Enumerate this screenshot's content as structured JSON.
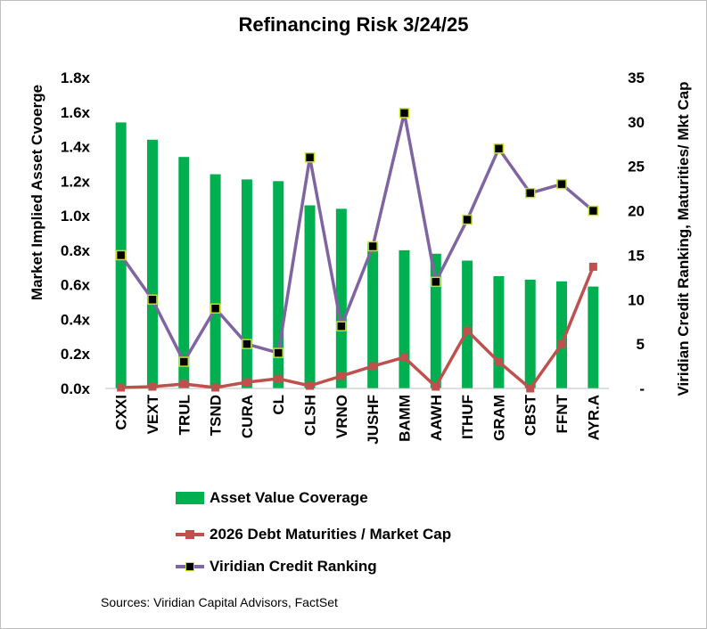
{
  "chart_data": {
    "type": "bar",
    "title": "Refinancing Risk 3/24/25",
    "ylabel": "Market Implied Asset Cvoerge",
    "y2label": "Viridian Credit Ranking,  Maturities/ Mkt Cap",
    "categories": [
      "CXXI",
      "VEXT",
      "TRUL",
      "TSND",
      "CURA",
      "CL",
      "CLSH",
      "VRNO",
      "JUSHF",
      "BAMM",
      "AAWH",
      "ITHUF",
      "GRAM",
      "CBST",
      "FFNT",
      "AYR.A"
    ],
    "ylim": [
      0,
      1.8
    ],
    "y_ticks": [
      "0.0x",
      "0.2x",
      "0.4x",
      "0.6x",
      "0.8x",
      "1.0x",
      "1.2x",
      "1.4x",
      "1.6x",
      "1.8x"
    ],
    "y2lim": [
      0,
      35
    ],
    "y2_ticks": [
      "-",
      "5",
      "10",
      "15",
      "20",
      "25",
      "30",
      "35"
    ],
    "grid": false,
    "legend_position": "bottom",
    "series": [
      {
        "name": "Asset Value Coverage",
        "type": "bar",
        "axis": "left",
        "color": "#00b050",
        "values": [
          1.54,
          1.44,
          1.34,
          1.24,
          1.21,
          1.2,
          1.06,
          1.04,
          0.84,
          0.8,
          0.78,
          0.74,
          0.65,
          0.63,
          0.62,
          0.59
        ]
      },
      {
        "name": "2026 Debt Maturities / Market Cap",
        "type": "line",
        "axis": "right",
        "color": "#c0504d",
        "values": [
          0.1,
          0.2,
          0.5,
          0.1,
          0.7,
          1.1,
          0.3,
          1.4,
          2.5,
          3.5,
          0.2,
          6.5,
          3.0,
          0.0,
          5.0,
          13.7
        ]
      },
      {
        "name": "Viridian Credit Ranking",
        "type": "line",
        "axis": "right",
        "color": "#8064a2",
        "marker_fill": "#000000",
        "marker_edge": "#c6e01a",
        "values": [
          15,
          10,
          3,
          9,
          5,
          4,
          26,
          7,
          16,
          31,
          12,
          19,
          27,
          22,
          23,
          20
        ]
      }
    ]
  },
  "source_note": "Sources: Viridian Capital Advisors, FactSet"
}
